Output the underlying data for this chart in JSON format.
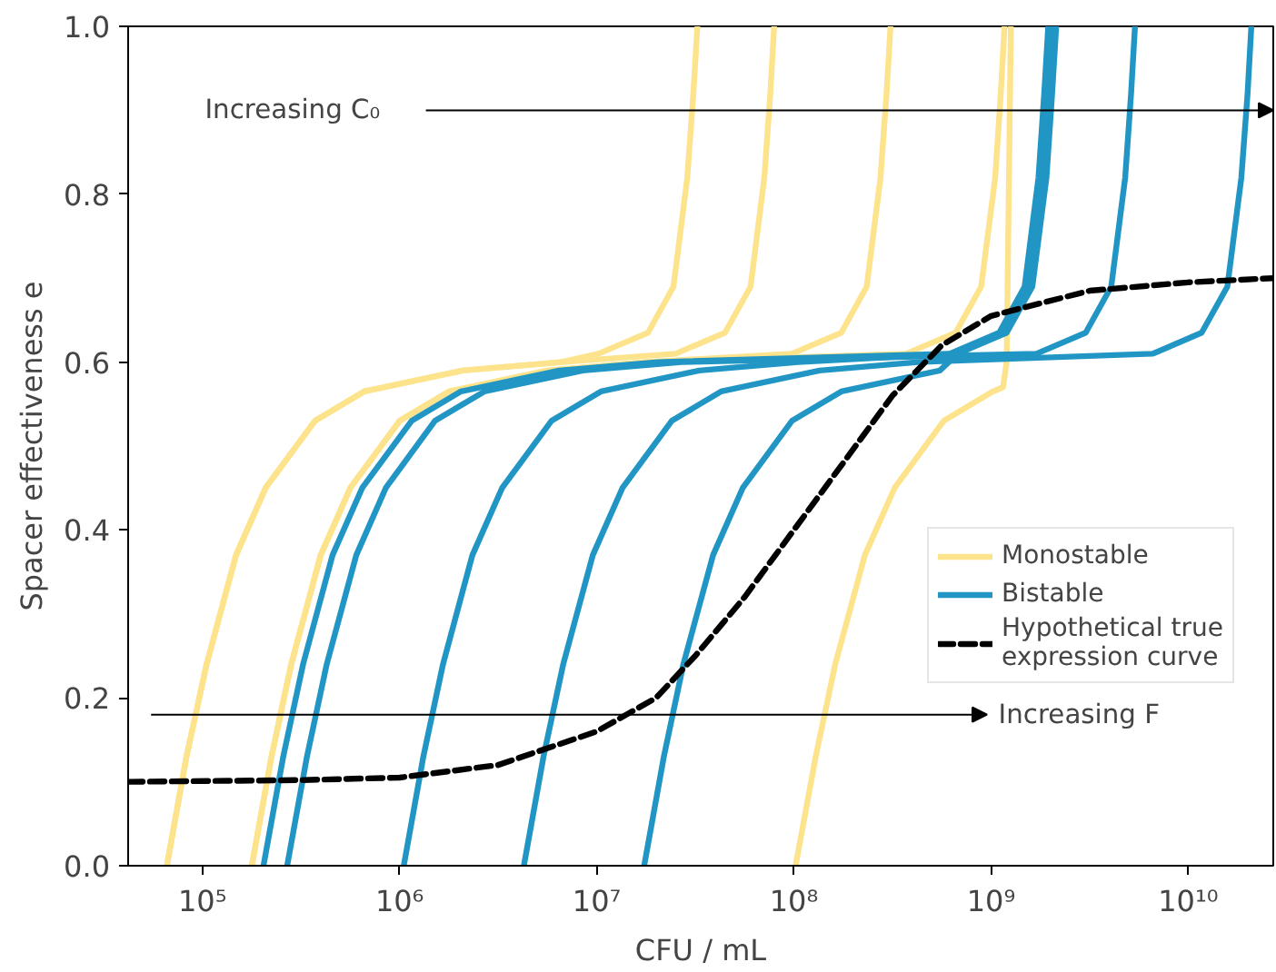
{
  "chart_data": {
    "type": "line",
    "xlabel": "CFU / mL",
    "ylabel": "Spacer effectiveness e",
    "log": "x",
    "grid": false,
    "legend": "right",
    "line_style": "solid",
    "marker": "none",
    "xlim": [
      42000,
      27000000000
    ],
    "ylim": [
      0,
      1
    ],
    "xticks": [
      {
        "value": 100000,
        "label": "10⁵"
      },
      {
        "value": 1000000,
        "label": "10⁶"
      },
      {
        "value": 10000000,
        "label": "10⁷"
      },
      {
        "value": 100000000,
        "label": "10⁸"
      },
      {
        "value": 1000000000,
        "label": "10⁹"
      },
      {
        "value": 10000000000,
        "label": "10¹⁰"
      }
    ],
    "yticks": [
      {
        "value": 0,
        "label": "0.0"
      },
      {
        "value": 0.2,
        "label": "0.2"
      },
      {
        "value": 0.4,
        "label": "0.4"
      },
      {
        "value": 0.6,
        "label": "0.6"
      },
      {
        "value": 0.8,
        "label": "0.8"
      },
      {
        "value": 1,
        "label": "1.0"
      }
    ],
    "annotations": [
      "Increasing C₀",
      "Increasing F"
    ],
    "series": [
      {
        "name": "Monostable",
        "color": "#fde38c",
        "x": [
          66000,
          83000,
          105000,
          148000,
          209000,
          372000,
          661000,
          2090000,
          6610000,
          10200000,
          18200000,
          24500000,
          28800000,
          30900000,
          32400000
        ],
        "values": [
          0,
          0.13,
          0.24,
          0.37,
          0.45,
          0.53,
          0.565,
          0.59,
          0.6,
          0.61,
          0.635,
          0.69,
          0.82,
          0.92,
          1.0
        ]
      },
      {
        "color": "#fde38c",
        "x": [
          66000,
          83000,
          105000,
          148000,
          209000,
          372000,
          661000,
          2090000,
          6610000,
          25100000,
          44700000,
          60300000,
          70800000,
          75900000,
          79400000
        ],
        "values": [
          0,
          0.13,
          0.24,
          0.37,
          0.45,
          0.53,
          0.565,
          0.59,
          0.6,
          0.61,
          0.635,
          0.69,
          0.82,
          0.92,
          1.0
        ]
      },
      {
        "color": "#fde38c",
        "x": [
          178000,
          224000,
          282000,
          398000,
          562000,
          1000000,
          1780000,
          5620000,
          17800000,
          97700000,
          174000000,
          234000000,
          275000000,
          295000000,
          309000000
        ],
        "values": [
          0,
          0.13,
          0.24,
          0.37,
          0.45,
          0.53,
          0.565,
          0.59,
          0.6,
          0.61,
          0.635,
          0.69,
          0.82,
          0.92,
          1.0
        ]
      },
      {
        "color": "#fde38c",
        "x": [
          178000,
          224000,
          282000,
          398000,
          562000,
          1000000,
          1780000,
          5620000,
          17800000,
          372000000,
          661000000,
          891000000,
          1050000000,
          1120000000,
          1170000000
        ],
        "values": [
          0,
          0.13,
          0.24,
          0.37,
          0.45,
          0.53,
          0.565,
          0.59,
          0.6,
          0.61,
          0.635,
          0.69,
          0.82,
          0.92,
          1.0
        ]
      },
      {
        "color": "#fde38c",
        "x": [
          102000000,
          129000000,
          162000000,
          229000000,
          324000000,
          575000000,
          1020000000,
          1150000000,
          1200000000,
          1260000000
        ],
        "values": [
          0,
          0.13,
          0.24,
          0.37,
          0.45,
          0.53,
          0.565,
          0.57,
          0.6,
          1.0
        ]
      },
      {
        "name": "Bistable",
        "color": "#2196c4",
        "x": [
          204000,
          257000,
          324000,
          457000,
          646000,
          1150000,
          2040000,
          6460000,
          20400000,
          617000000,
          1100000000,
          1480000000,
          1740000000,
          1860000000,
          1950000000
        ],
        "values": [
          0,
          0.13,
          0.24,
          0.37,
          0.45,
          0.53,
          0.565,
          0.59,
          0.6,
          0.61,
          0.635,
          0.69,
          0.82,
          0.92,
          1.0
        ]
      },
      {
        "color": "#2196c4",
        "x": [
          269000,
          339000,
          427000,
          603000,
          851000,
          1510000,
          2690000,
          8510000,
          26900000,
          1700000000,
          3020000000,
          4070000000,
          4790000000,
          5130000000,
          5370000000
        ],
        "values": [
          0,
          0.13,
          0.24,
          0.37,
          0.45,
          0.53,
          0.565,
          0.59,
          0.6,
          0.61,
          0.635,
          0.69,
          0.82,
          0.92,
          1.0
        ]
      },
      {
        "color": "#2196c4",
        "x": [
          1050000,
          1320000,
          1660000,
          2340000,
          3310000,
          5890000,
          10500000,
          33100000,
          105000000,
          646000000,
          1150000000,
          1550000000,
          1820000000,
          1950000000,
          2040000000
        ],
        "values": [
          0,
          0.13,
          0.24,
          0.37,
          0.45,
          0.53,
          0.565,
          0.59,
          0.6,
          0.61,
          0.635,
          0.69,
          0.82,
          0.92,
          1.0
        ]
      },
      {
        "color": "#2196c4",
        "x": [
          4270000,
          5370000,
          6760000,
          9550000,
          13500000,
          24000000,
          42700000,
          135000000,
          427000000,
          6610000000,
          11700000000,
          15800000000,
          18600000000,
          20000000000,
          20900000000
        ],
        "values": [
          0,
          0.13,
          0.24,
          0.37,
          0.45,
          0.53,
          0.565,
          0.59,
          0.6,
          0.61,
          0.635,
          0.69,
          0.82,
          0.92,
          1.0
        ]
      },
      {
        "color": "#2196c4",
        "x": [
          17400000,
          21900000,
          27500000,
          38900000,
          55000000,
          97700000,
          174000000,
          550000000,
          676000000,
          1200000000,
          1620000000,
          1910000000,
          2040000000,
          2140000000
        ],
        "values": [
          0,
          0.13,
          0.24,
          0.37,
          0.45,
          0.53,
          0.565,
          0.59,
          0.61,
          0.635,
          0.69,
          0.82,
          0.92,
          1.0
        ]
      },
      {
        "name": "Hypothetical true\nexpression curve",
        "color": "#000000",
        "line_style": "dashed",
        "x": [
          42000,
          316000,
          1000000,
          3160000,
          10000000,
          20000000,
          31600000,
          56200000,
          100000000,
          178000000,
          316000000,
          562000000,
          1000000000,
          3160000000,
          10000000000,
          27000000000
        ],
        "values": [
          0.1,
          0.102,
          0.105,
          0.12,
          0.16,
          0.2,
          0.25,
          0.32,
          0.4,
          0.48,
          0.56,
          0.62,
          0.655,
          0.685,
          0.695,
          0.7
        ]
      }
    ]
  }
}
